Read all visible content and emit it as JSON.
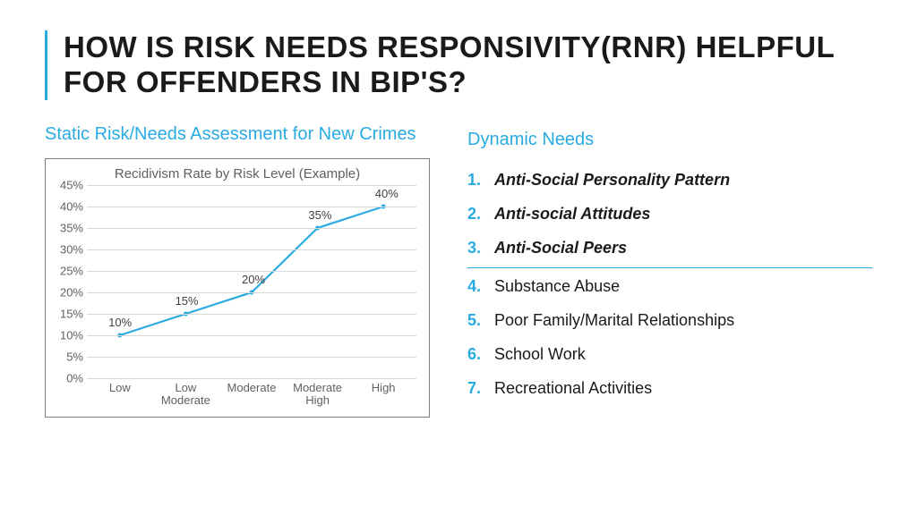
{
  "title": "HOW IS RISK NEEDS RESPONSIVITY(RNR) HELPFUL FOR OFFENDERS IN BIP'S?",
  "left": {
    "subhead": "Static Risk/Needs Assessment for New Crimes",
    "chart": {
      "type": "line",
      "title": "Recidivism Rate by Risk Level (Example)",
      "categories": [
        "Low",
        "Low Moderate",
        "Moderate",
        "Moderate High",
        "High"
      ],
      "values": [
        10,
        15,
        20,
        35,
        40
      ],
      "value_labels": [
        "10%",
        "15%",
        "20%",
        "35%",
        "40%"
      ],
      "y_ticks": [
        0,
        5,
        10,
        15,
        20,
        25,
        30,
        35,
        40,
        45
      ],
      "y_tick_labels": [
        "0%",
        "5%",
        "10%",
        "15%",
        "20%",
        "25%",
        "30%",
        "35%",
        "40%",
        "45%"
      ],
      "ylim": [
        0,
        45
      ],
      "line_color": "#29abe2",
      "line_width": 2.2,
      "marker_size": 5,
      "grid_color": "#d9d9d9",
      "text_color": "#606060",
      "border_color": "#7f7f7f",
      "title_fontsize": 15,
      "tick_fontsize": 13
    }
  },
  "right": {
    "subhead": "Dynamic Needs",
    "items": [
      {
        "n": "1.",
        "label": "Anti-Social Personality Pattern",
        "bold": true
      },
      {
        "n": "2.",
        "label": "Anti-social Attitudes",
        "bold": true
      },
      {
        "n": "3.",
        "label": "Anti-Social Peers",
        "bold": true
      },
      {
        "n": "4.",
        "label": "Substance Abuse",
        "bold": false
      },
      {
        "n": "5.",
        "label": "Poor Family/Marital Relationships",
        "bold": false
      },
      {
        "n": "6.",
        "label": "School Work",
        "bold": false
      },
      {
        "n": "7.",
        "label": "Recreational Activities",
        "bold": false
      }
    ],
    "divider_after_index": 2,
    "accent_color": "#29abe2"
  }
}
